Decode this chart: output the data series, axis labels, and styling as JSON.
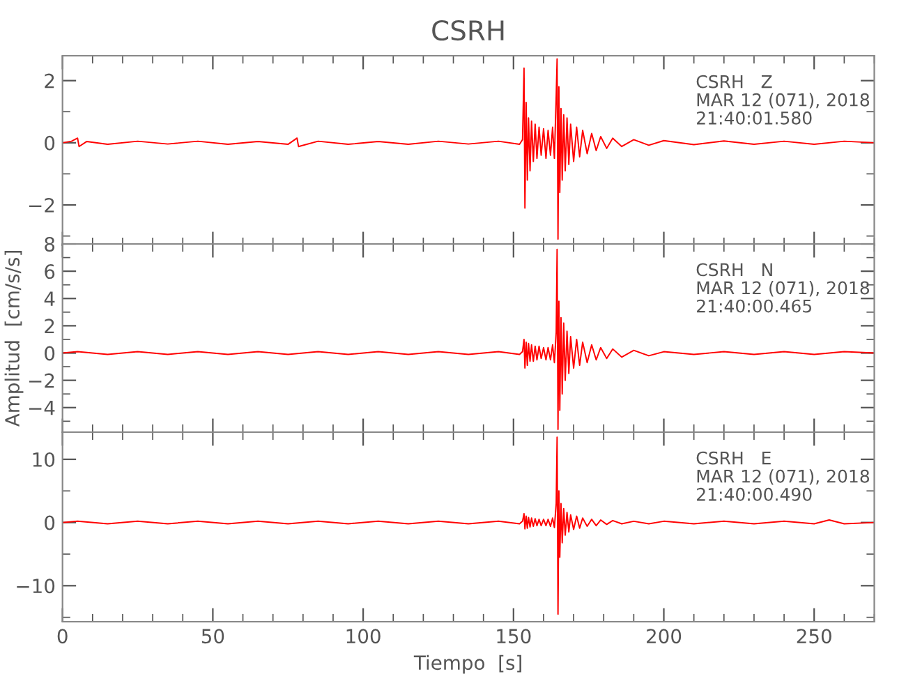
{
  "chart_data": [
    {
      "type": "line",
      "title": "CSRH",
      "tick_labels": "y",
      "x": [
        0,
        3,
        5,
        5.5,
        8,
        15,
        25,
        35,
        45,
        55,
        65,
        75,
        78,
        78.5,
        85,
        95,
        105,
        115,
        125,
        135,
        145,
        152,
        153,
        153.5,
        153.8,
        154.2,
        154.6,
        155,
        155.5,
        156,
        156.6,
        157.2,
        157.8,
        158.5,
        159.2,
        160,
        160.8,
        161.5,
        162.3,
        163,
        163.6,
        164.2,
        164.5,
        164.8,
        165.1,
        165.4,
        165.8,
        166.2,
        166.7,
        167.2,
        167.8,
        168.4,
        169,
        170,
        171,
        172,
        173,
        174.5,
        176,
        177.5,
        179,
        181,
        183,
        186,
        190,
        195,
        200,
        210,
        220,
        230,
        240,
        250,
        260,
        270
      ],
      "series": [
        {
          "color": "#ff0000",
          "values": [
            0,
            0.05,
            0.15,
            -0.12,
            0.04,
            -0.05,
            0.05,
            -0.04,
            0.05,
            -0.05,
            0.04,
            -0.05,
            0.15,
            -0.12,
            0.05,
            -0.05,
            0.04,
            -0.05,
            0.05,
            -0.04,
            0.05,
            -0.05,
            0.1,
            2.4,
            -2.1,
            1.3,
            -1.2,
            0.8,
            -0.9,
            0.7,
            -0.6,
            0.6,
            -0.5,
            0.5,
            -0.4,
            0.45,
            -0.5,
            0.4,
            -0.4,
            0.5,
            -0.5,
            1.5,
            2.7,
            -3.1,
            1.8,
            -1.6,
            1.1,
            -1.2,
            0.9,
            -0.9,
            0.8,
            -0.7,
            0.6,
            -0.6,
            0.5,
            -0.45,
            0.4,
            -0.35,
            0.3,
            -0.25,
            0.2,
            -0.18,
            0.15,
            -0.12,
            0.1,
            -0.08,
            0.07,
            -0.06,
            0.06,
            -0.05,
            0.05,
            -0.05,
            0.05,
            0
          ]
        }
      ],
      "xlim": [
        0,
        270
      ],
      "ylim": [
        -3.3,
        2.8
      ],
      "xticks": [
        0,
        {
          "value": 10,
          "label": null
        },
        {
          "value": 20,
          "label": null
        },
        {
          "value": 30,
          "label": null
        },
        {
          "value": 40,
          "label": null
        },
        50,
        {
          "value": 60,
          "label": null
        },
        {
          "value": 70,
          "label": null
        },
        {
          "value": 80,
          "label": null
        },
        {
          "value": 90,
          "label": null
        },
        100,
        {
          "value": 110,
          "label": null
        },
        {
          "value": 120,
          "label": null
        },
        {
          "value": 130,
          "label": null
        },
        {
          "value": 140,
          "label": null
        },
        150,
        {
          "value": 160,
          "label": null
        },
        {
          "value": 170,
          "label": null
        },
        {
          "value": 180,
          "label": null
        },
        {
          "value": 190,
          "label": null
        },
        200,
        {
          "value": 210,
          "label": null
        },
        {
          "value": 220,
          "label": null
        },
        {
          "value": 230,
          "label": null
        },
        {
          "value": 240,
          "label": null
        },
        250,
        {
          "value": 260,
          "label": null
        },
        {
          "value": 270,
          "label": null
        }
      ],
      "yticks": [
        {
          "value": -3,
          "label": null
        },
        {
          "value": -2,
          "label": "−2"
        },
        {
          "value": -1,
          "label": null
        },
        0,
        {
          "value": 1,
          "label": null
        },
        2
      ],
      "annotations": [
        "CSRH   Z\nMAR 12 (071), 2018\n21:40:01.580"
      ]
    },
    {
      "type": "line",
      "ylabel": "Amplitud  [cm/s/s]",
      "tick_labels": "y",
      "x": [
        0,
        5,
        15,
        25,
        35,
        45,
        55,
        65,
        75,
        85,
        95,
        105,
        115,
        125,
        135,
        145,
        152,
        153,
        153.5,
        153.8,
        154.2,
        154.6,
        155,
        155.5,
        156,
        156.6,
        157.2,
        157.8,
        158.5,
        159.2,
        160,
        160.8,
        161.5,
        162.3,
        163,
        163.6,
        164.2,
        164.5,
        164.8,
        165.1,
        165.4,
        165.8,
        166.2,
        166.7,
        167.2,
        167.8,
        168.4,
        169,
        170,
        171,
        172,
        173,
        174.5,
        176,
        177.5,
        179,
        181,
        183,
        186,
        190,
        195,
        200,
        210,
        220,
        230,
        240,
        250,
        260,
        270
      ],
      "series": [
        {
          "color": "#ff0000",
          "values": [
            0,
            0.1,
            -0.1,
            0.1,
            -0.1,
            0.1,
            -0.1,
            0.1,
            -0.1,
            0.1,
            -0.1,
            0.1,
            -0.1,
            0.1,
            -0.1,
            0.1,
            -0.1,
            0.1,
            1.0,
            -1.1,
            0.8,
            -0.9,
            0.7,
            -0.6,
            0.6,
            -0.6,
            0.5,
            -0.5,
            0.5,
            -0.4,
            0.4,
            -0.5,
            0.4,
            -0.5,
            0.6,
            -0.7,
            1.5,
            7.6,
            -5.6,
            3.8,
            -4.2,
            2.6,
            -3.0,
            2.2,
            -2.0,
            1.6,
            -1.5,
            1.2,
            -1.1,
            1.0,
            -0.9,
            0.8,
            -0.7,
            0.6,
            -0.5,
            0.4,
            -0.4,
            0.3,
            -0.3,
            0.2,
            -0.2,
            0.1,
            -0.1,
            0.1,
            -0.1,
            0.1,
            -0.1,
            0.1,
            0
          ]
        }
      ],
      "xlim": [
        0,
        270
      ],
      "ylim": [
        -5.8,
        8
      ],
      "xticks": [
        0,
        {
          "value": 10,
          "label": null
        },
        {
          "value": 20,
          "label": null
        },
        {
          "value": 30,
          "label": null
        },
        {
          "value": 40,
          "label": null
        },
        50,
        {
          "value": 60,
          "label": null
        },
        {
          "value": 70,
          "label": null
        },
        {
          "value": 80,
          "label": null
        },
        {
          "value": 90,
          "label": null
        },
        100,
        {
          "value": 110,
          "label": null
        },
        {
          "value": 120,
          "label": null
        },
        {
          "value": 130,
          "label": null
        },
        {
          "value": 140,
          "label": null
        },
        150,
        {
          "value": 160,
          "label": null
        },
        {
          "value": 170,
          "label": null
        },
        {
          "value": 180,
          "label": null
        },
        {
          "value": 190,
          "label": null
        },
        200,
        {
          "value": 210,
          "label": null
        },
        {
          "value": 220,
          "label": null
        },
        {
          "value": 230,
          "label": null
        },
        {
          "value": 240,
          "label": null
        },
        250,
        {
          "value": 260,
          "label": null
        },
        {
          "value": 270,
          "label": null
        }
      ],
      "yticks": [
        {
          "value": -5,
          "label": null
        },
        {
          "value": -4,
          "label": "−4"
        },
        {
          "value": -3,
          "label": null
        },
        {
          "value": -2,
          "label": "−2"
        },
        {
          "value": -1,
          "label": null
        },
        0,
        {
          "value": 1,
          "label": null
        },
        2,
        {
          "value": 3,
          "label": null
        },
        4,
        {
          "value": 5,
          "label": null
        },
        6,
        {
          "value": 7,
          "label": null
        },
        8
      ],
      "annotations": [
        "CSRH   N\nMAR 12 (071), 2018\n21:40:00.465"
      ]
    },
    {
      "type": "line",
      "xlabel": "Tiempo  [s]",
      "x": [
        0,
        5,
        15,
        25,
        35,
        45,
        55,
        65,
        75,
        85,
        95,
        105,
        115,
        125,
        135,
        145,
        152,
        153,
        153.5,
        153.8,
        154.2,
        154.6,
        155,
        155.5,
        156,
        156.6,
        157.2,
        157.8,
        158.5,
        159.2,
        160,
        160.8,
        161.5,
        162.3,
        163,
        163.6,
        164.2,
        164.5,
        164.8,
        165.1,
        165.4,
        165.8,
        166.2,
        166.7,
        167.2,
        167.8,
        168.4,
        169,
        170,
        171,
        172,
        173,
        174.5,
        176,
        177.5,
        179,
        181,
        183,
        186,
        190,
        195,
        200,
        210,
        220,
        230,
        240,
        250,
        255,
        260,
        270
      ],
      "series": [
        {
          "color": "#ff0000",
          "values": [
            0,
            0.2,
            -0.2,
            0.2,
            -0.2,
            0.2,
            -0.2,
            0.2,
            -0.2,
            0.2,
            -0.2,
            0.2,
            -0.2,
            0.2,
            -0.2,
            0.2,
            -0.2,
            0.2,
            1.4,
            -1.0,
            1.0,
            -0.9,
            0.8,
            -0.7,
            0.7,
            -0.6,
            0.6,
            -0.5,
            0.5,
            -0.5,
            0.5,
            -0.5,
            0.5,
            -0.6,
            0.7,
            -0.8,
            3.0,
            13.5,
            -14.5,
            5.0,
            -5.5,
            3.0,
            -3.2,
            2.2,
            -2.0,
            1.6,
            -1.5,
            1.2,
            -1.1,
            1.0,
            -0.9,
            0.7,
            -0.6,
            0.5,
            -0.5,
            0.4,
            -0.3,
            0.3,
            -0.2,
            0.2,
            -0.2,
            0.2,
            -0.2,
            0.2,
            -0.2,
            0.2,
            -0.2,
            0.4,
            -0.2,
            0
          ]
        }
      ],
      "xlim": [
        0,
        270
      ],
      "ylim": [
        -15.7,
        14.3
      ],
      "xticks": [
        0,
        {
          "value": 10,
          "label": null
        },
        {
          "value": 20,
          "label": null
        },
        {
          "value": 30,
          "label": null
        },
        {
          "value": 40,
          "label": null
        },
        50,
        {
          "value": 60,
          "label": null
        },
        {
          "value": 70,
          "label": null
        },
        {
          "value": 80,
          "label": null
        },
        {
          "value": 90,
          "label": null
        },
        100,
        {
          "value": 110,
          "label": null
        },
        {
          "value": 120,
          "label": null
        },
        {
          "value": 130,
          "label": null
        },
        {
          "value": 140,
          "label": null
        },
        150,
        {
          "value": 160,
          "label": null
        },
        {
          "value": 170,
          "label": null
        },
        {
          "value": 180,
          "label": null
        },
        {
          "value": 190,
          "label": null
        },
        200,
        {
          "value": 210,
          "label": null
        },
        {
          "value": 220,
          "label": null
        },
        {
          "value": 230,
          "label": null
        },
        {
          "value": 240,
          "label": null
        },
        250,
        {
          "value": 260,
          "label": null
        },
        {
          "value": 270,
          "label": null
        }
      ],
      "yticks": [
        {
          "value": -15,
          "label": null
        },
        {
          "value": -10,
          "label": "−10"
        },
        {
          "value": -5,
          "label": null
        },
        0,
        {
          "value": 5,
          "label": null
        },
        10
      ],
      "annotations": [
        "CSRH   E\nMAR 12 (071), 2018\n21:40:00.490"
      ]
    }
  ]
}
